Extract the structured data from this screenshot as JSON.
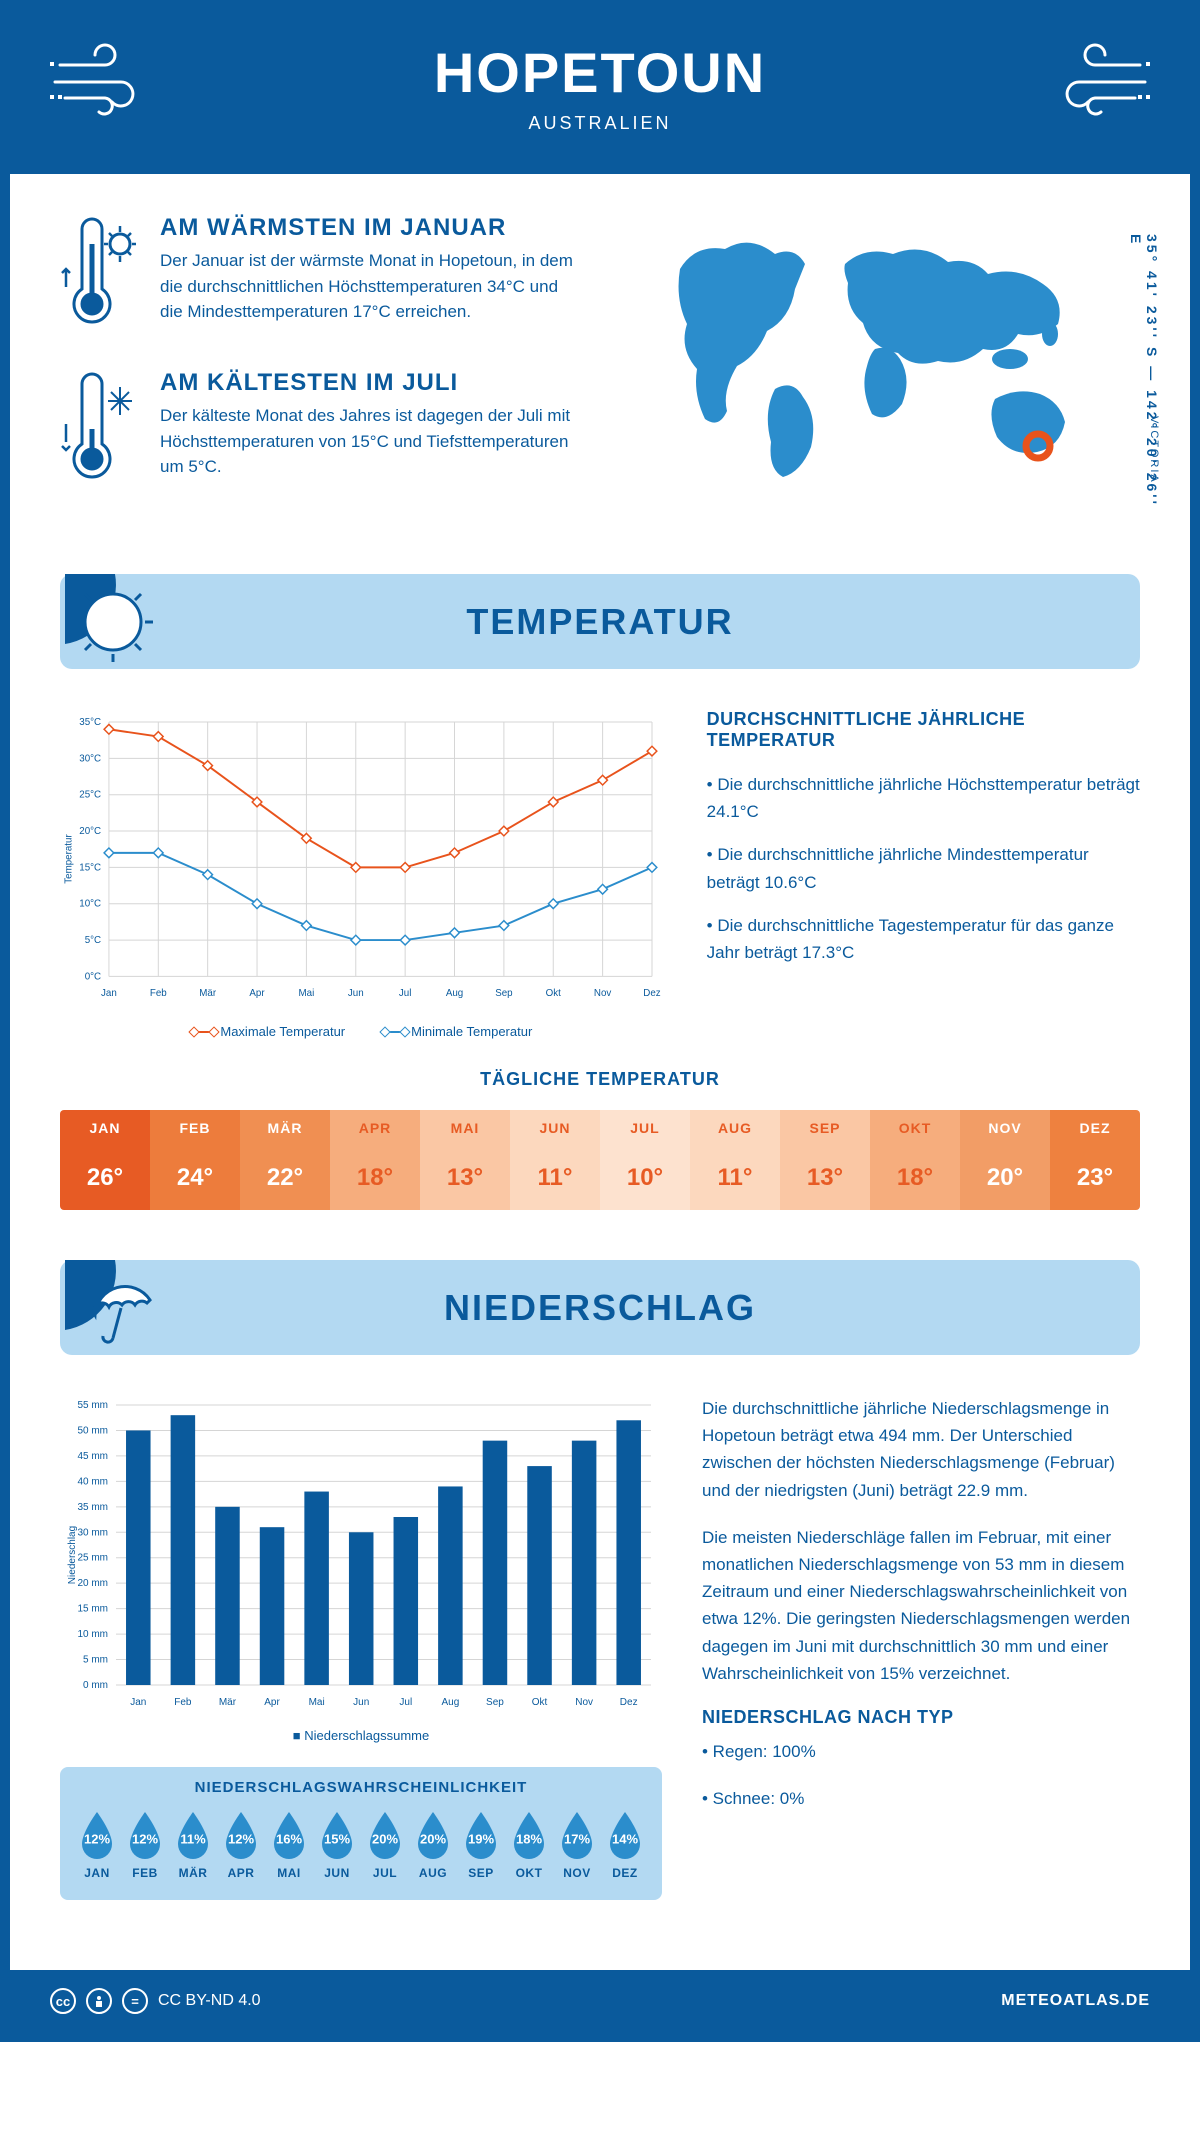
{
  "header": {
    "title": "HOPETOUN",
    "subtitle": "AUSTRALIEN"
  },
  "coords": "35° 41' 23'' S — 142° 20' 26'' E",
  "region": "VICTORIA",
  "warmest": {
    "title": "AM WÄRMSTEN IM JANUAR",
    "text": "Der Januar ist der wärmste Monat in Hopetoun, in dem die durchschnittlichen Höchsttemperaturen 34°C und die Mindesttemperaturen 17°C erreichen."
  },
  "coldest": {
    "title": "AM KÄLTESTEN IM JULI",
    "text": "Der kälteste Monat des Jahres ist dagegen der Juli mit Höchsttemperaturen von 15°C und Tiefsttemperaturen um 5°C."
  },
  "temp_section": {
    "banner": "TEMPERATUR",
    "info_title": "DURCHSCHNITTLICHE JÄHRLICHE TEMPERATUR",
    "bullet1": "• Die durchschnittliche jährliche Höchsttemperatur beträgt 24.1°C",
    "bullet2": "• Die durchschnittliche jährliche Mindesttemperatur beträgt 10.6°C",
    "bullet3": "• Die durchschnittliche Tagestemperatur für das ganze Jahr beträgt 17.3°C",
    "legend_max": "Maximale Temperatur",
    "legend_min": "Minimale Temperatur",
    "daily_title": "TÄGLICHE TEMPERATUR"
  },
  "line_chart": {
    "type": "line",
    "months": [
      "Jan",
      "Feb",
      "Mär",
      "Apr",
      "Mai",
      "Jun",
      "Jul",
      "Aug",
      "Sep",
      "Okt",
      "Nov",
      "Dez"
    ],
    "max_series": [
      34,
      33,
      29,
      24,
      19,
      15,
      15,
      17,
      20,
      24,
      27,
      31
    ],
    "min_series": [
      17,
      17,
      14,
      10,
      7,
      5,
      5,
      6,
      7,
      10,
      12,
      15
    ],
    "max_color": "#e8531c",
    "min_color": "#2b8dcc",
    "ylabel": "Temperatur",
    "ylim": [
      0,
      35
    ],
    "ytick_step": 5,
    "grid_color": "#d5d5d5",
    "label_fontsize": 10,
    "line_width": 2,
    "marker": "diamond"
  },
  "daily_temp": {
    "months": [
      "JAN",
      "FEB",
      "MÄR",
      "APR",
      "MAI",
      "JUN",
      "JUL",
      "AUG",
      "SEP",
      "OKT",
      "NOV",
      "DEZ"
    ],
    "values": [
      "26°",
      "24°",
      "22°",
      "18°",
      "13°",
      "11°",
      "10°",
      "11°",
      "13°",
      "18°",
      "20°",
      "23°"
    ],
    "header_colors": [
      "#e75b24",
      "#ed7c3c",
      "#f08f52",
      "#f6ad7d",
      "#fac7a4",
      "#fcd8be",
      "#fde2cf",
      "#fcd8be",
      "#fac7a4",
      "#f6ad7d",
      "#f29d66",
      "#ee813f"
    ],
    "cell_colors": [
      "#e75b24",
      "#ed7c3c",
      "#f08f52",
      "#f6ad7d",
      "#fac7a4",
      "#fcd8be",
      "#fde2cf",
      "#fcd8be",
      "#fac7a4",
      "#f6ad7d",
      "#f29d66",
      "#ee813f"
    ],
    "text_colors": [
      "#ffffff",
      "#ffffff",
      "#ffffff",
      "#e75b24",
      "#e75b24",
      "#e75b24",
      "#e75b24",
      "#e75b24",
      "#e75b24",
      "#e75b24",
      "#ffffff",
      "#ffffff"
    ]
  },
  "precip_section": {
    "banner": "NIEDERSCHLAG",
    "para1": "Die durchschnittliche jährliche Niederschlagsmenge in Hopetoun beträgt etwa 494 mm. Der Unterschied zwischen der höchsten Niederschlagsmenge (Februar) und der niedrigsten (Juni) beträgt 22.9 mm.",
    "para2": "Die meisten Niederschläge fallen im Februar, mit einer monatlichen Niederschlagsmenge von 53 mm in diesem Zeitraum und einer Niederschlagswahrscheinlichkeit von etwa 12%. Die geringsten Niederschlagsmengen werden dagegen im Juni mit durchschnittlich 30 mm und einer Wahrscheinlichkeit von 15% verzeichnet.",
    "type_title": "NIEDERSCHLAG NACH TYP",
    "type1": "• Regen: 100%",
    "type2": "• Schnee: 0%",
    "bar_legend": "Niederschlagssumme"
  },
  "bar_chart": {
    "type": "bar",
    "months": [
      "Jan",
      "Feb",
      "Mär",
      "Apr",
      "Mai",
      "Jun",
      "Jul",
      "Aug",
      "Sep",
      "Okt",
      "Nov",
      "Dez"
    ],
    "values": [
      50,
      53,
      35,
      31,
      38,
      30,
      33,
      39,
      48,
      43,
      48,
      52
    ],
    "bar_color": "#0a5a9c",
    "ylabel": "Niederschlag",
    "ylim": [
      0,
      55
    ],
    "ytick_step": 5,
    "grid_color": "#d5d5d5",
    "label_fontsize": 10
  },
  "prob": {
    "title": "NIEDERSCHLAGSWAHRSCHEINLICHKEIT",
    "months": [
      "JAN",
      "FEB",
      "MÄR",
      "APR",
      "MAI",
      "JUN",
      "JUL",
      "AUG",
      "SEP",
      "OKT",
      "NOV",
      "DEZ"
    ],
    "values": [
      "12%",
      "12%",
      "11%",
      "12%",
      "16%",
      "15%",
      "20%",
      "20%",
      "19%",
      "18%",
      "17%",
      "14%"
    ],
    "drop_color": "#2b8dcc"
  },
  "footer": {
    "license": "CC BY-ND 4.0",
    "brand": "METEOATLAS.DE"
  },
  "colors": {
    "primary": "#0a5a9c",
    "lightblue": "#b3d9f2",
    "skyblue": "#2b8dcc",
    "orange": "#e8531c"
  }
}
